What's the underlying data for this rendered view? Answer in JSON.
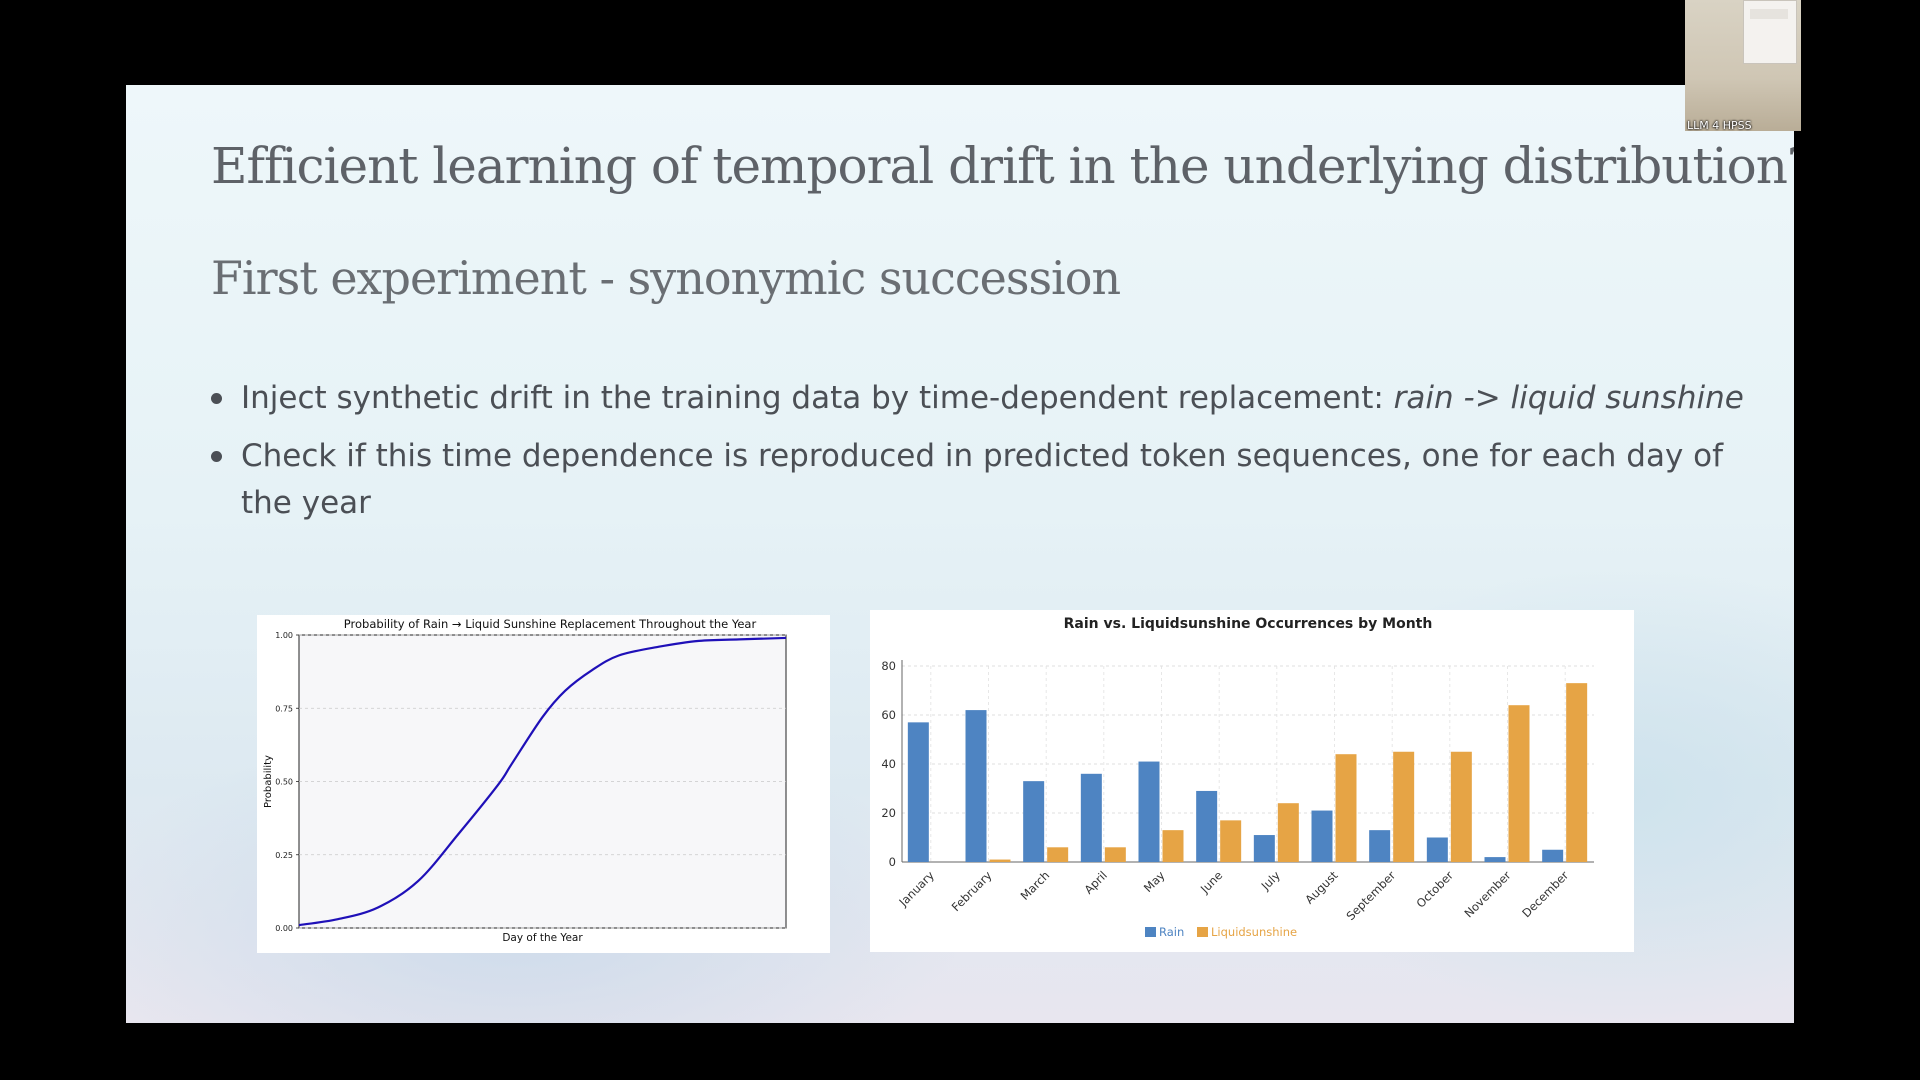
{
  "slide": {
    "title": "Efficient learning of temporal drift in the underlying distribution?",
    "subtitle": "First experiment - synonymic succession",
    "bullets": [
      {
        "text": "Inject synthetic drift in the training data by time-dependent replacement: ",
        "italic": "rain -> liquid sunshine"
      },
      {
        "text": "Check if this time dependence is reproduced in predicted token sequences, one for each day of the year",
        "italic": ""
      }
    ]
  },
  "webcam": {
    "label": "LLM 4 HPSS"
  },
  "chart_data": [
    {
      "type": "line",
      "title": "Probability of Rain → Liquid Sunshine Replacement Throughout the Year",
      "xlabel": "Day of the Year",
      "ylabel": "Probability",
      "ylim": [
        0,
        1
      ],
      "yticks": [
        "0.00",
        "0.25",
        "0.50",
        "0.75",
        "1.00"
      ],
      "xlim": [
        1,
        365
      ],
      "grid": true,
      "series": [
        {
          "x": [
            1,
            30,
            60,
            90,
            120,
            150,
            160,
            183,
            200,
            220,
            240,
            270,
            300,
            330,
            365
          ],
          "y": [
            0.01,
            0.03,
            0.07,
            0.16,
            0.32,
            0.49,
            0.56,
            0.72,
            0.81,
            0.88,
            0.93,
            0.96,
            0.98,
            0.985,
            0.99
          ],
          "color": "#1f10b8"
        }
      ]
    },
    {
      "type": "bar",
      "title": "Rain vs. Liquidsunshine Occurrences by Month",
      "categories": [
        "January",
        "February",
        "March",
        "April",
        "May",
        "June",
        "July",
        "August",
        "September",
        "October",
        "November",
        "December"
      ],
      "ylim": [
        0,
        80
      ],
      "yticks": [
        "0",
        "20",
        "40",
        "60",
        "80"
      ],
      "legend_position": "bottom",
      "grid": true,
      "series": [
        {
          "name": "Rain",
          "color": "#4e84c2",
          "values": [
            57,
            62,
            33,
            36,
            41,
            29,
            11,
            21,
            13,
            10,
            2,
            5
          ]
        },
        {
          "name": "Liquidsunshine",
          "color": "#e6a445",
          "values": [
            0,
            1,
            6,
            6,
            13,
            17,
            24,
            44,
            45,
            45,
            64,
            73
          ]
        }
      ]
    }
  ]
}
